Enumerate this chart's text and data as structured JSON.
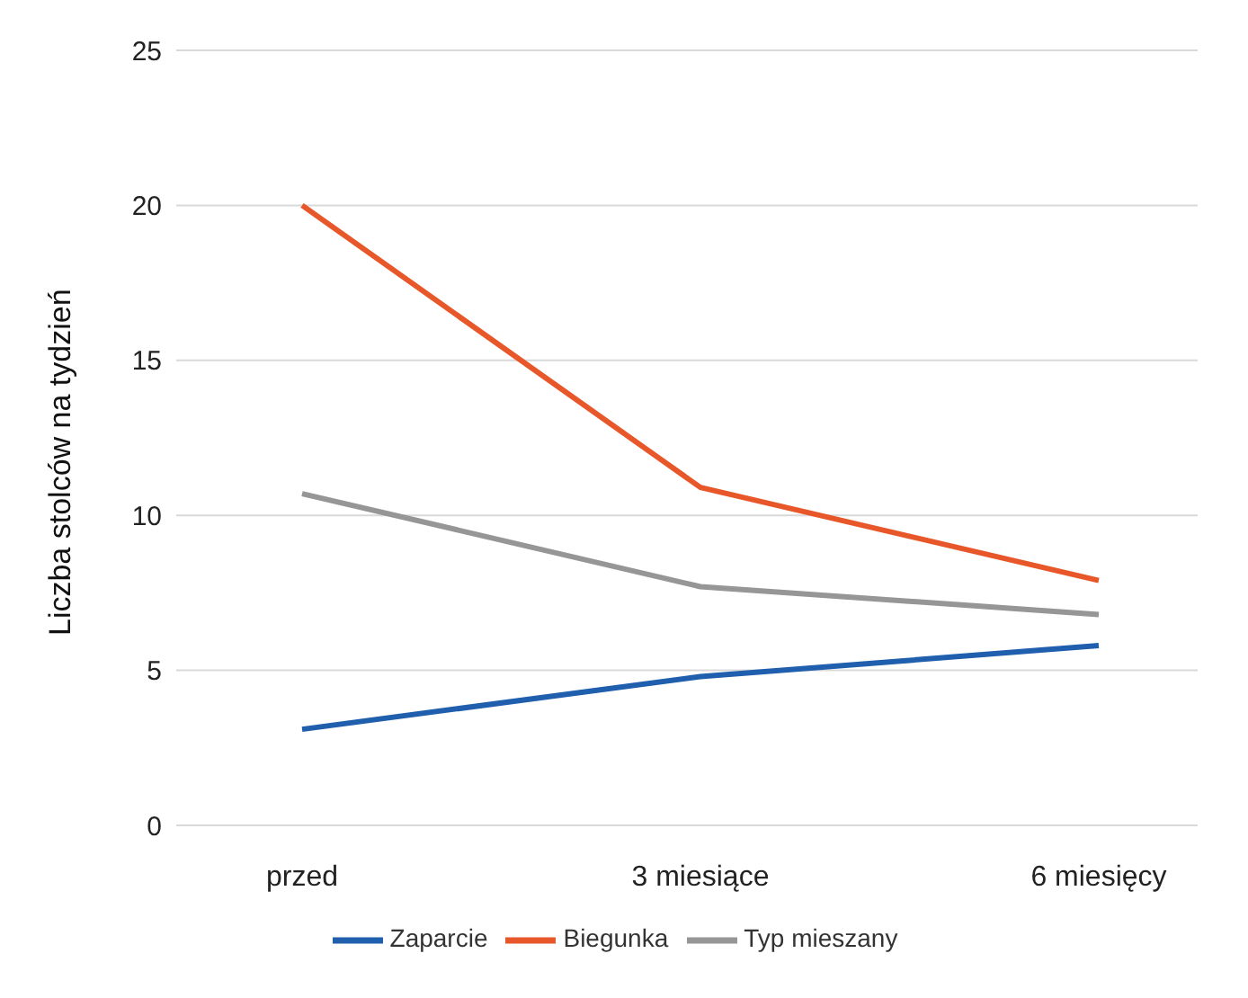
{
  "chart_data": {
    "type": "line",
    "ylabel": "Liczba stolców na tydzień",
    "categories": [
      "przed",
      "3 miesiące",
      "6 miesięcy"
    ],
    "series": [
      {
        "name": "Zaparcie",
        "color": "#1f5fad",
        "values": [
          3.1,
          4.8,
          5.8
        ]
      },
      {
        "name": "Biegunka",
        "color": "#e8572a",
        "values": [
          20,
          10.9,
          7.9
        ]
      },
      {
        "name": "Typ mieszany",
        "color": "#969696",
        "values": [
          10.7,
          7.7,
          6.8
        ]
      }
    ],
    "ylim": [
      0,
      25
    ],
    "yticks": [
      0,
      5,
      10,
      15,
      20,
      25
    ],
    "grid": "y",
    "legend": "bottom",
    "marker": "none",
    "line_style": "solid"
  }
}
